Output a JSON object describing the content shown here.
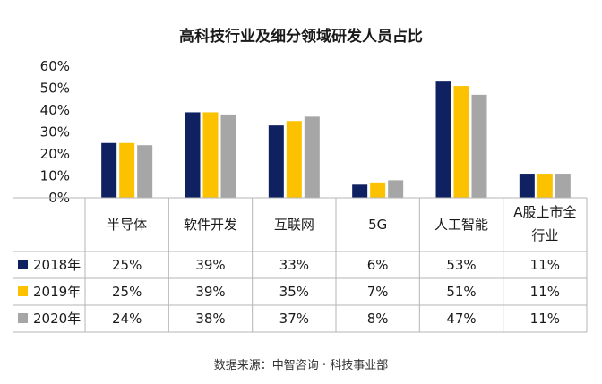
{
  "chart_data": {
    "type": "bar",
    "title": "高科技行业及细分领域研发人员占比",
    "categories": [
      "半导体",
      "软件开发",
      "互联网",
      "5G",
      "人工智能",
      "A股上市全行业"
    ],
    "category_label_lines": [
      [
        "半导体"
      ],
      [
        "软件开发"
      ],
      [
        "互联网"
      ],
      [
        "5G"
      ],
      [
        "人工智能"
      ],
      [
        "A股上市全",
        "行业"
      ]
    ],
    "series": [
      {
        "name": "2018年",
        "color": "#0f2160",
        "values": [
          25,
          39,
          33,
          6,
          53,
          11
        ]
      },
      {
        "name": "2019年",
        "color": "#fcc200",
        "values": [
          25,
          39,
          35,
          7,
          51,
          11
        ]
      },
      {
        "name": "2020年",
        "color": "#a6a6a6",
        "values": [
          24,
          38,
          37,
          8,
          47,
          11
        ]
      }
    ],
    "value_suffix": "%",
    "ylim": [
      0,
      60
    ],
    "yticks": [
      "0%",
      "10%",
      "20%",
      "30%",
      "40%",
      "50%",
      "60%"
    ],
    "grid": false,
    "legend": "data-table",
    "source": "数据来源：中智咨询 · 科技事业部"
  }
}
